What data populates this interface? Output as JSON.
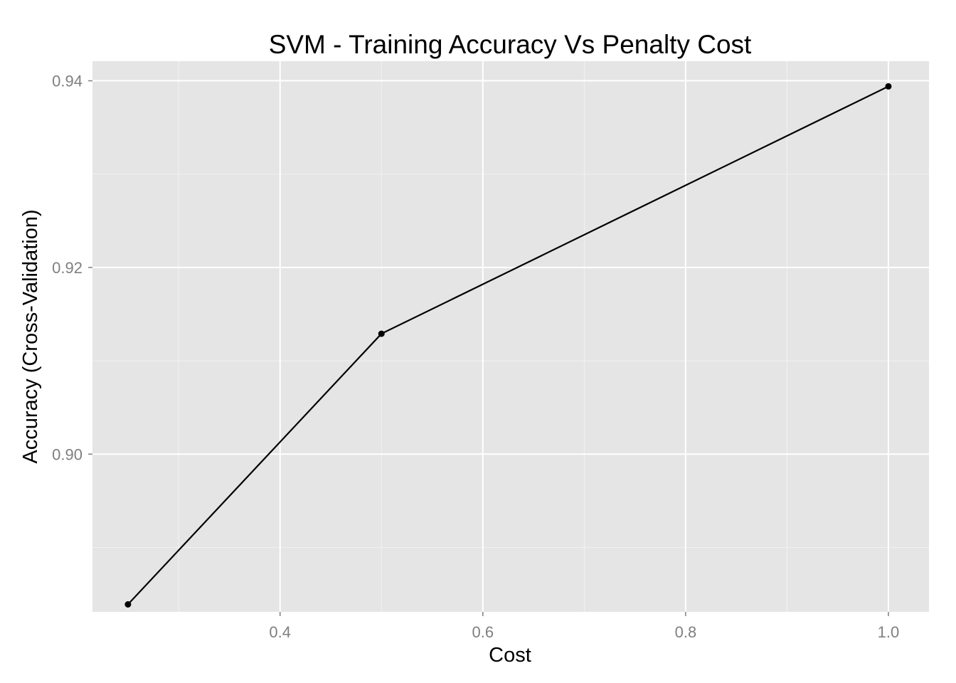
{
  "chart_data": {
    "type": "line",
    "title": "SVM - Training Accuracy Vs Penalty Cost",
    "xlabel": "Cost",
    "ylabel": "Accuracy (Cross-Validation)",
    "xlim": [
      0.215,
      1.04
    ],
    "ylim": [
      0.8831,
      0.9421
    ],
    "x_ticks": [
      {
        "value": 0.4,
        "label": "0.4"
      },
      {
        "value": 0.6,
        "label": "0.6"
      },
      {
        "value": 0.8,
        "label": "0.8"
      },
      {
        "value": 1.0,
        "label": "1.0"
      }
    ],
    "x_minor_ticks": [
      0.3,
      0.5,
      0.7,
      0.9
    ],
    "y_ticks": [
      {
        "value": 0.9,
        "label": "0.90"
      },
      {
        "value": 0.92,
        "label": "0.92"
      },
      {
        "value": 0.94,
        "label": "0.94"
      }
    ],
    "y_minor_ticks": [
      0.89,
      0.91,
      0.93
    ],
    "grid": true,
    "colors": {
      "panel_background": "#e5e5e5",
      "grid_major": "#ffffff",
      "grid_minor": "#f2f2f2",
      "line": "#000000",
      "point": "#000000"
    },
    "series": [
      {
        "x": [
          0.25,
          0.5,
          1.0
        ],
        "y": [
          0.8839,
          0.9129,
          0.9394
        ]
      }
    ]
  }
}
